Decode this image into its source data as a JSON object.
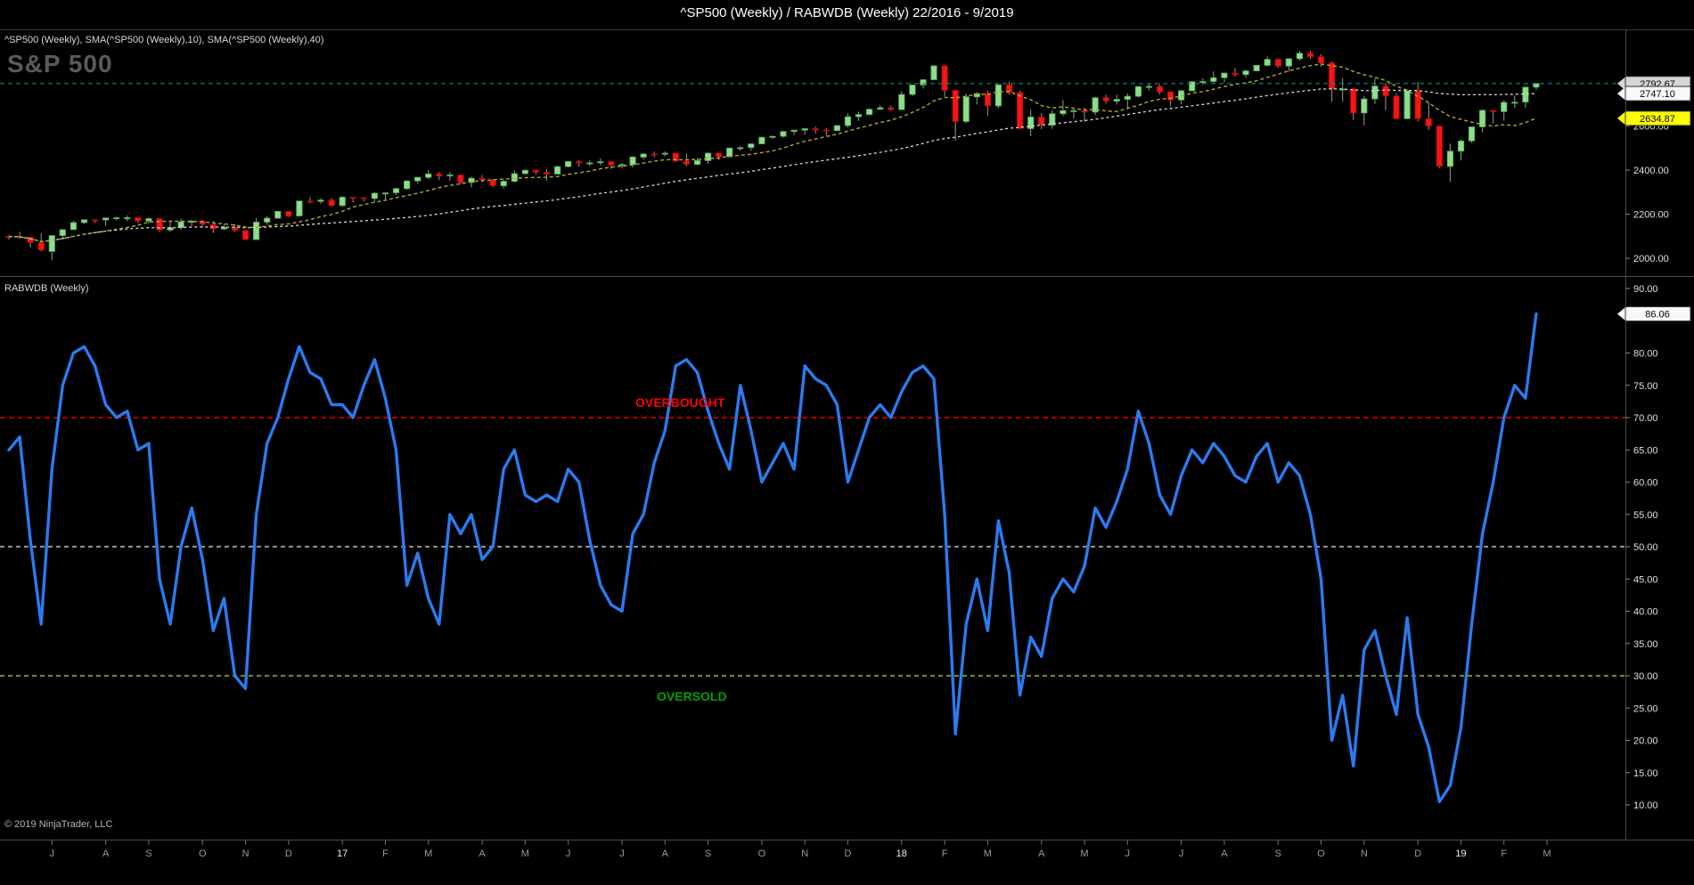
{
  "title": "^SP500 (Weekly) / RABWDB (Weekly)  22/2016 - 9/2019",
  "price_panel": {
    "label": "^SP500 (Weekly), SMA(^SP500 (Weekly),10), SMA(^SP500 (Weekly),40)",
    "watermark": "S&P 500"
  },
  "indicator_panel": {
    "label": "RABWDB (Weekly)",
    "overbought_label": "OVERBOUGHT",
    "oversold_label": "OVERSOLD"
  },
  "footer": {
    "copyright": "© 2019 NinjaTrader, LLC"
  },
  "colors": {
    "background": "#000000",
    "up": "#8fdc8f",
    "up_border": "#4daa4d",
    "down": "#f21616",
    "down_border": "#b30000",
    "wick": "#9a9a9a",
    "sma10": "#b0a832",
    "sma40": "#d8d8d8",
    "last_price": "#008f80",
    "oscillator": "#2b7bf0",
    "overbought": "#e60000",
    "midline": "#e8e8e8",
    "oversold": "#a2b82b",
    "overbought_text": "#ff0000",
    "oversold_text": "#00a000",
    "axis_text": "#e0e0e0",
    "month_text": "#9a9a9a",
    "year_text": "#ececec",
    "watermark": "#5a5a5a"
  },
  "time_axis": {
    "labels": [
      [
        "J",
        4
      ],
      [
        "A",
        9
      ],
      [
        "S",
        13
      ],
      [
        "O",
        18
      ],
      [
        "N",
        22
      ],
      [
        "D",
        26
      ],
      [
        "17",
        31
      ],
      [
        "F",
        35
      ],
      [
        "M",
        39
      ],
      [
        "A",
        44
      ],
      [
        "M",
        48
      ],
      [
        "J",
        52
      ],
      [
        "J",
        57
      ],
      [
        "A",
        61
      ],
      [
        "S",
        65
      ],
      [
        "O",
        70
      ],
      [
        "N",
        74
      ],
      [
        "D",
        78
      ],
      [
        "18",
        83
      ],
      [
        "F",
        87
      ],
      [
        "M",
        91
      ],
      [
        "A",
        96
      ],
      [
        "M",
        100
      ],
      [
        "J",
        104
      ],
      [
        "J",
        109
      ],
      [
        "A",
        113
      ],
      [
        "S",
        118
      ],
      [
        "O",
        122
      ],
      [
        "N",
        126
      ],
      [
        "D",
        131
      ],
      [
        "19",
        135
      ],
      [
        "F",
        139
      ],
      [
        "M",
        143
      ]
    ]
  },
  "chart_data": [
    {
      "type": "candlestick",
      "panel": "price",
      "name": "^SP500 (Weekly)",
      "ylim": [
        1960,
        3010
      ],
      "y_ticks": [
        "2600.00",
        "2400.00",
        "2200.00",
        "2000.00"
      ],
      "last_close": 2792.67,
      "overlays": [
        {
          "name": "SMA(10)",
          "period": 10,
          "last": 2634.87,
          "style": "dashed",
          "color": "#b0a832"
        },
        {
          "name": "SMA(40)",
          "period": 40,
          "last": 2747.1,
          "style": "dashed",
          "color": "#d8d8d8"
        }
      ],
      "boxes": [
        {
          "text": "2792.67",
          "value": 2792.67,
          "bg": "#d6d6d6"
        },
        {
          "text": "2747.10",
          "value": 2747.1,
          "bg": "#f8f8f8"
        },
        {
          "text": "2634.87",
          "value": 2634.87,
          "bg": "#ffff00"
        }
      ],
      "candles_ohlc": [
        [
          2100,
          2105,
          2085,
          2099
        ],
        [
          2099,
          2120,
          2089,
          2096
        ],
        [
          2096,
          2097,
          2050,
          2071
        ],
        [
          2071,
          2113,
          2032,
          2037
        ],
        [
          2031,
          2104,
          1992,
          2103
        ],
        [
          2103,
          2131,
          2089,
          2130
        ],
        [
          2130,
          2169,
          2128,
          2162
        ],
        [
          2162,
          2176,
          2155,
          2175
        ],
        [
          2175,
          2177,
          2160,
          2174
        ],
        [
          2174,
          2183,
          2147,
          2183
        ],
        [
          2183,
          2188,
          2172,
          2184
        ],
        [
          2184,
          2194,
          2168,
          2184
        ],
        [
          2184,
          2187,
          2160,
          2169
        ],
        [
          2169,
          2184,
          2157,
          2180
        ],
        [
          2180,
          2182,
          2120,
          2128
        ],
        [
          2128,
          2164,
          2119,
          2139
        ],
        [
          2139,
          2180,
          2130,
          2165
        ],
        [
          2165,
          2175,
          2145,
          2168
        ],
        [
          2168,
          2175,
          2140,
          2154
        ],
        [
          2154,
          2169,
          2115,
          2133
        ],
        [
          2133,
          2155,
          2128,
          2141
        ],
        [
          2141,
          2155,
          2119,
          2126
        ],
        [
          2126,
          2129,
          2084,
          2085
        ],
        [
          2085,
          2182,
          2084,
          2164
        ],
        [
          2164,
          2190,
          2152,
          2182
        ],
        [
          2182,
          2213,
          2180,
          2213
        ],
        [
          2213,
          2214,
          2187,
          2192
        ],
        [
          2192,
          2260,
          2188,
          2260
        ],
        [
          2260,
          2278,
          2248,
          2258
        ],
        [
          2258,
          2272,
          2247,
          2264
        ],
        [
          2264,
          2273,
          2233,
          2239
        ],
        [
          2239,
          2282,
          2234,
          2277
        ],
        [
          2277,
          2279,
          2254,
          2275
        ],
        [
          2275,
          2276,
          2258,
          2271
        ],
        [
          2271,
          2300,
          2257,
          2295
        ],
        [
          2295,
          2298,
          2267,
          2297
        ],
        [
          2297,
          2319,
          2287,
          2316
        ],
        [
          2316,
          2352,
          2311,
          2351
        ],
        [
          2351,
          2368,
          2339,
          2367
        ],
        [
          2367,
          2400,
          2358,
          2383
        ],
        [
          2383,
          2391,
          2354,
          2373
        ],
        [
          2373,
          2390,
          2353,
          2378
        ],
        [
          2378,
          2379,
          2336,
          2344
        ],
        [
          2344,
          2370,
          2322,
          2363
        ],
        [
          2363,
          2378,
          2344,
          2356
        ],
        [
          2356,
          2360,
          2322,
          2329
        ],
        [
          2329,
          2356,
          2316,
          2349
        ],
        [
          2349,
          2398,
          2344,
          2384
        ],
        [
          2384,
          2404,
          2380,
          2399
        ],
        [
          2399,
          2403,
          2379,
          2391
        ],
        [
          2391,
          2405,
          2352,
          2382
        ],
        [
          2382,
          2419,
          2381,
          2416
        ],
        [
          2416,
          2440,
          2412,
          2439
        ],
        [
          2439,
          2446,
          2416,
          2432
        ],
        [
          2432,
          2444,
          2419,
          2433
        ],
        [
          2433,
          2453,
          2422,
          2438
        ],
        [
          2438,
          2441,
          2405,
          2423
        ],
        [
          2423,
          2432,
          2407,
          2425
        ],
        [
          2425,
          2464,
          2412,
          2459
        ],
        [
          2459,
          2477,
          2448,
          2473
        ],
        [
          2473,
          2484,
          2459,
          2472
        ],
        [
          2472,
          2484,
          2462,
          2477
        ],
        [
          2477,
          2479,
          2437,
          2441
        ],
        [
          2441,
          2475,
          2417,
          2426
        ],
        [
          2426,
          2454,
          2421,
          2443
        ],
        [
          2443,
          2480,
          2428,
          2477
        ],
        [
          2477,
          2479,
          2446,
          2461
        ],
        [
          2461,
          2500,
          2457,
          2500
        ],
        [
          2500,
          2508,
          2488,
          2502
        ],
        [
          2502,
          2520,
          2488,
          2519
        ],
        [
          2519,
          2552,
          2520,
          2549
        ],
        [
          2549,
          2557,
          2541,
          2553
        ],
        [
          2553,
          2578,
          2547,
          2575
        ],
        [
          2575,
          2582,
          2559,
          2581
        ],
        [
          2581,
          2588,
          2560,
          2588
        ],
        [
          2588,
          2597,
          2566,
          2582
        ],
        [
          2582,
          2590,
          2557,
          2579
        ],
        [
          2579,
          2604,
          2577,
          2602
        ],
        [
          2602,
          2657,
          2594,
          2642
        ],
        [
          2642,
          2665,
          2624,
          2652
        ],
        [
          2652,
          2680,
          2647,
          2676
        ],
        [
          2676,
          2694,
          2673,
          2683
        ],
        [
          2683,
          2692,
          2669,
          2674
        ],
        [
          2674,
          2759,
          2674,
          2743
        ],
        [
          2743,
          2787,
          2736,
          2786
        ],
        [
          2786,
          2810,
          2770,
          2810
        ],
        [
          2810,
          2873,
          2808,
          2873
        ],
        [
          2873,
          2873,
          2736,
          2762
        ],
        [
          2762,
          2763,
          2533,
          2620
        ],
        [
          2620,
          2747,
          2613,
          2732
        ],
        [
          2732,
          2754,
          2698,
          2747
        ],
        [
          2747,
          2761,
          2647,
          2691
        ],
        [
          2691,
          2787,
          2681,
          2787
        ],
        [
          2787,
          2802,
          2742,
          2752
        ],
        [
          2752,
          2761,
          2585,
          2588
        ],
        [
          2588,
          2674,
          2554,
          2641
        ],
        [
          2641,
          2659,
          2586,
          2604
        ],
        [
          2604,
          2673,
          2587,
          2656
        ],
        [
          2656,
          2718,
          2645,
          2670
        ],
        [
          2670,
          2683,
          2634,
          2670
        ],
        [
          2670,
          2684,
          2618,
          2663
        ],
        [
          2663,
          2733,
          2650,
          2728
        ],
        [
          2728,
          2742,
          2701,
          2713
        ],
        [
          2713,
          2742,
          2697,
          2721
        ],
        [
          2721,
          2748,
          2676,
          2735
        ],
        [
          2735,
          2779,
          2729,
          2779
        ],
        [
          2779,
          2791,
          2762,
          2780
        ],
        [
          2780,
          2789,
          2744,
          2755
        ],
        [
          2755,
          2757,
          2692,
          2718
        ],
        [
          2718,
          2764,
          2698,
          2760
        ],
        [
          2760,
          2804,
          2760,
          2801
        ],
        [
          2801,
          2816,
          2789,
          2802
        ],
        [
          2802,
          2848,
          2795,
          2819
        ],
        [
          2819,
          2843,
          2798,
          2840
        ],
        [
          2840,
          2863,
          2824,
          2833
        ],
        [
          2833,
          2855,
          2819,
          2850
        ],
        [
          2850,
          2876,
          2847,
          2875
        ],
        [
          2875,
          2916,
          2870,
          2902
        ],
        [
          2902,
          2907,
          2864,
          2872
        ],
        [
          2872,
          2908,
          2846,
          2905
        ],
        [
          2905,
          2940,
          2896,
          2930
        ],
        [
          2930,
          2941,
          2903,
          2914
        ],
        [
          2914,
          2926,
          2869,
          2886
        ],
        [
          2886,
          2894,
          2710,
          2767
        ],
        [
          2767,
          2816,
          2711,
          2768
        ],
        [
          2768,
          2772,
          2628,
          2659
        ],
        [
          2659,
          2737,
          2603,
          2723
        ],
        [
          2723,
          2815,
          2700,
          2781
        ],
        [
          2781,
          2795,
          2672,
          2736
        ],
        [
          2736,
          2747,
          2631,
          2633
        ],
        [
          2633,
          2760,
          2631,
          2760
        ],
        [
          2760,
          2800,
          2621,
          2633
        ],
        [
          2633,
          2708,
          2583,
          2600
        ],
        [
          2600,
          2601,
          2409,
          2417
        ],
        [
          2417,
          2520,
          2347,
          2486
        ],
        [
          2486,
          2538,
          2444,
          2532
        ],
        [
          2532,
          2597,
          2524,
          2596
        ],
        [
          2596,
          2675,
          2571,
          2671
        ],
        [
          2671,
          2673,
          2612,
          2665
        ],
        [
          2665,
          2717,
          2625,
          2707
        ],
        [
          2707,
          2738,
          2682,
          2708
        ],
        [
          2708,
          2776,
          2682,
          2776
        ],
        [
          2776,
          2794,
          2764,
          2792.67
        ]
      ]
    },
    {
      "type": "line",
      "panel": "indicator",
      "name": "RABWDB (Weekly)",
      "ylim": [
        10,
        90
      ],
      "y_ticks": [
        "90.00",
        "80.00",
        "75.00",
        "70.00",
        "65.00",
        "60.00",
        "55.00",
        "50.00",
        "45.00",
        "40.00",
        "35.00",
        "30.00",
        "25.00",
        "20.00",
        "15.00",
        "10.00"
      ],
      "levels": {
        "overbought": 70,
        "mid": 50,
        "oversold": 30
      },
      "last_value": 86.06,
      "box": {
        "text": "86.06",
        "value": 86.06,
        "bg": "#f8f8f8"
      },
      "values": [
        65,
        67,
        51,
        38,
        62,
        75,
        80,
        81,
        78,
        72,
        70,
        71,
        65,
        66,
        45,
        38,
        50,
        56,
        48,
        37,
        42,
        30,
        28,
        55,
        66,
        70,
        76,
        81,
        77,
        76,
        72,
        72,
        70,
        75,
        79,
        73,
        65,
        44,
        49,
        42,
        38,
        55,
        52,
        55,
        48,
        50,
        62,
        65,
        58,
        57,
        58,
        57,
        62,
        60,
        51,
        44,
        41,
        40,
        52,
        55,
        63,
        68,
        78,
        79,
        77,
        71,
        66,
        62,
        75,
        68,
        60,
        63,
        66,
        62,
        78,
        76,
        75,
        72,
        60,
        65,
        70,
        72,
        70,
        74,
        77,
        78,
        76,
        55,
        21,
        38,
        45,
        37,
        54,
        46,
        27,
        36,
        33,
        42,
        45,
        43,
        47,
        56,
        53,
        57,
        62,
        71,
        66,
        58,
        55,
        61,
        65,
        63,
        66,
        64,
        61,
        60,
        64,
        66,
        60,
        63,
        61,
        55,
        45,
        20,
        27,
        16,
        34,
        37,
        30,
        24,
        39,
        24,
        19,
        10.5,
        13,
        22,
        38,
        52,
        60,
        70,
        75,
        73,
        86.06
      ]
    }
  ]
}
